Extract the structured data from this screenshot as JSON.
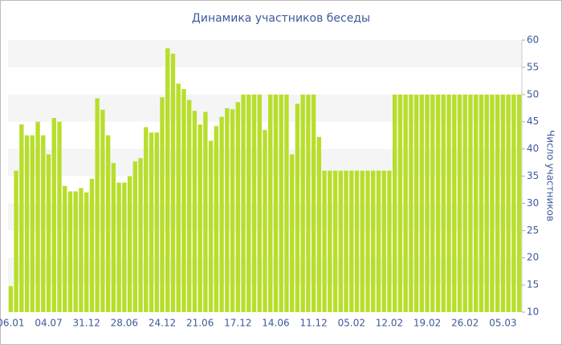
{
  "chart_data": {
    "type": "bar",
    "title": "Динамика участников беседы",
    "y_label": "Число участников",
    "categories": [
      "06.01",
      null,
      null,
      null,
      null,
      null,
      null,
      "04.07",
      null,
      null,
      null,
      null,
      null,
      null,
      "31.12",
      null,
      null,
      null,
      null,
      null,
      null,
      "28.06",
      null,
      null,
      null,
      null,
      null,
      null,
      "24.12",
      null,
      null,
      null,
      null,
      null,
      null,
      "21.06",
      null,
      null,
      null,
      null,
      null,
      null,
      "17.12",
      null,
      null,
      null,
      null,
      null,
      null,
      "14.06",
      null,
      null,
      null,
      null,
      null,
      null,
      "11.12",
      null,
      null,
      null,
      null,
      null,
      null,
      "05.02",
      null,
      null,
      null,
      null,
      null,
      null,
      "12.02",
      null,
      null,
      null,
      null,
      null,
      null,
      "19.02",
      null,
      null,
      null,
      null,
      null,
      null,
      "26.02",
      null,
      null,
      null,
      null,
      null,
      null,
      "05.03",
      null,
      null,
      null
    ],
    "values": [
      14.8,
      36,
      44.5,
      42.5,
      42.5,
      45,
      42.5,
      39,
      45.7,
      45,
      33.2,
      32.2,
      32.2,
      32.8,
      32,
      34.5,
      49.3,
      47.2,
      42.5,
      37.4,
      33.8,
      33.8,
      35,
      37.7,
      38.3,
      44,
      43,
      43,
      49.5,
      58.5,
      57.5,
      52,
      51,
      49,
      47,
      44.5,
      46.8,
      41.5,
      44.2,
      45.9,
      47.5,
      47.3,
      48.6,
      50,
      50,
      50,
      50,
      43.5,
      50,
      50,
      50,
      50,
      39,
      48.3,
      50,
      50,
      50,
      42.2,
      36,
      36,
      36,
      36,
      36,
      36,
      36,
      36,
      36,
      36,
      36,
      36,
      36,
      50,
      50,
      50,
      50,
      50,
      50,
      50,
      50,
      50,
      50,
      50,
      50,
      50,
      50,
      50,
      50,
      50,
      50,
      50,
      50,
      50,
      50,
      50,
      50
    ],
    "color": "#b8de2c",
    "ylim": [
      10,
      60
    ],
    "yticks": [
      10,
      15,
      20,
      25,
      30,
      35,
      40,
      45,
      50,
      55,
      60
    ],
    "grid": true
  }
}
